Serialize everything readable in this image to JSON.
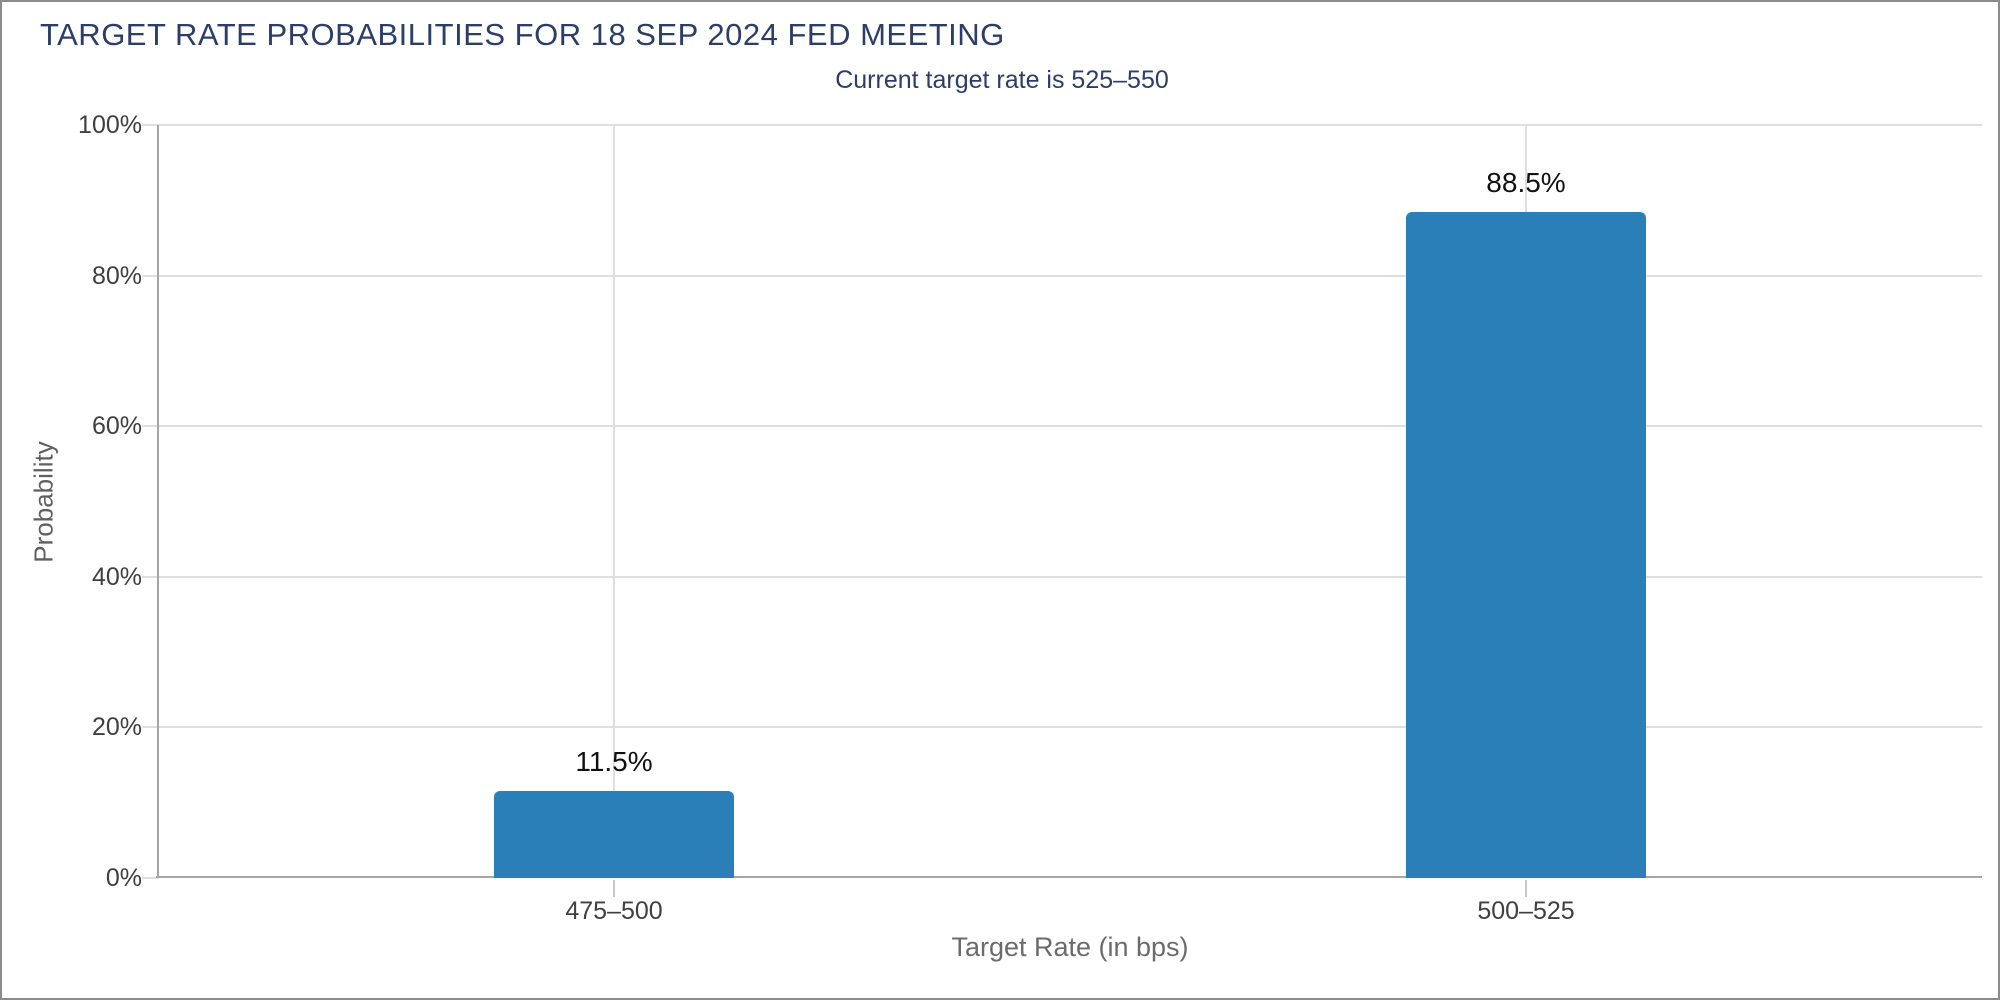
{
  "page": {
    "title": "TARGET RATE PROBABILITIES FOR 18 SEP 2024 FED MEETING",
    "subtitle": "Current target rate is 525–550"
  },
  "chart_data": {
    "type": "bar",
    "title": "TARGET RATE PROBABILITIES FOR 18 SEP 2024 FED MEETING",
    "subtitle": "Current target rate is 525–550",
    "categories": [
      "475–500",
      "500–525"
    ],
    "values": [
      11.5,
      88.5
    ],
    "value_labels": [
      "11.5%",
      "88.5%"
    ],
    "xlabel": "Target Rate (in bps)",
    "ylabel": "Probability",
    "ylim": [
      0,
      100
    ],
    "yticks": [
      0,
      20,
      40,
      60,
      80,
      100
    ],
    "ytick_labels": [
      "0%",
      "20%",
      "40%",
      "60%",
      "80%",
      "100%"
    ],
    "grid": true,
    "legend": "none",
    "colors": {
      "bar": "#2a7fb9",
      "title_text": "#2c3e67",
      "tick_label_text": "#3f3f3f",
      "axis_title_text": "#666666",
      "gridline": "#dedede",
      "axis_line": "#a6a6a6",
      "value_label_text": "#111111",
      "page_border": "#8c8c8c",
      "background": "#ffffff"
    }
  }
}
